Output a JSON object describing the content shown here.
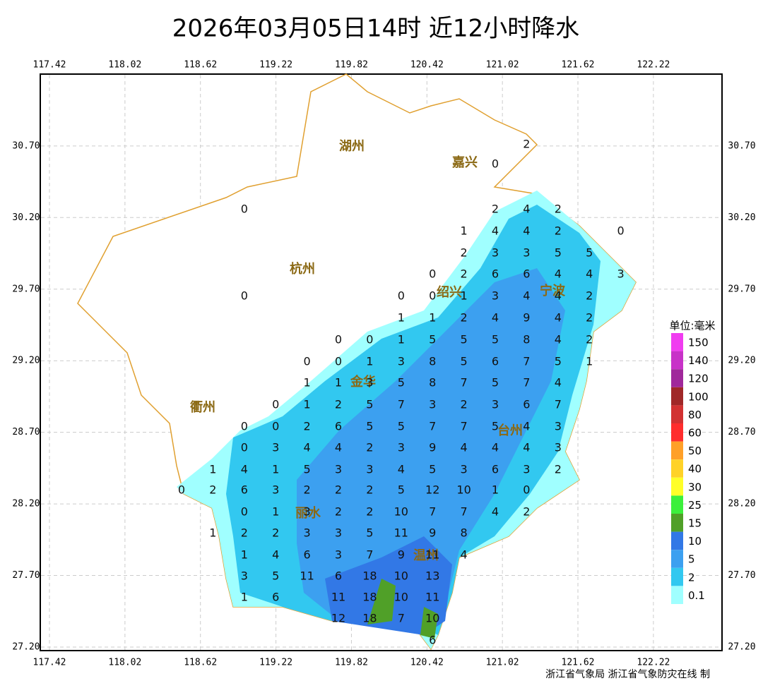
{
  "header": {
    "title": "2026年03月05日14时  近12小时降水"
  },
  "map": {
    "lon_ticks": [
      117.42,
      118.02,
      118.62,
      119.22,
      119.82,
      120.42,
      121.02,
      121.62,
      122.22
    ],
    "lat_ticks": [
      {
        "value": 30.7,
        "label": "30.70"
      },
      {
        "value": 30.2,
        "label": "30.20"
      },
      {
        "value": 29.7,
        "label": "29.70"
      },
      {
        "value": 29.2,
        "label": "29.20"
      },
      {
        "value": 28.7,
        "label": "28.70"
      },
      {
        "value": 28.2,
        "label": "28.20"
      },
      {
        "value": 27.7,
        "label": "27.70"
      },
      {
        "value": 27.2,
        "label": "27.20"
      }
    ],
    "grid": true,
    "cities": [
      "湖州",
      "嘉兴",
      "杭州",
      "绍兴",
      "宁波",
      "衢州",
      "金华",
      "台州",
      "丽水",
      "温州"
    ],
    "stations": [
      [
        null,
        null,
        null,
        null,
        null,
        null,
        null,
        null,
        null,
        null,
        null,
        2,
        null,
        null,
        null
      ],
      [
        null,
        null,
        null,
        null,
        null,
        null,
        null,
        null,
        null,
        null,
        0,
        null,
        null,
        null,
        null
      ],
      [
        null,
        null,
        0,
        null,
        null,
        null,
        null,
        null,
        null,
        null,
        2,
        4,
        2,
        null,
        null
      ],
      [
        null,
        null,
        null,
        null,
        null,
        null,
        null,
        null,
        null,
        1,
        4,
        4,
        2,
        null,
        0
      ],
      [
        null,
        null,
        null,
        null,
        null,
        null,
        null,
        null,
        null,
        2,
        3,
        3,
        5,
        5,
        null
      ],
      [
        null,
        null,
        null,
        null,
        null,
        null,
        null,
        null,
        0,
        2,
        6,
        6,
        4,
        4,
        3
      ],
      [
        null,
        null,
        0,
        null,
        null,
        null,
        null,
        0,
        0,
        1,
        3,
        4,
        4,
        2,
        null
      ],
      [
        null,
        null,
        null,
        null,
        null,
        null,
        null,
        1,
        1,
        2,
        4,
        9,
        4,
        2,
        null
      ],
      [
        null,
        null,
        null,
        null,
        null,
        0,
        0,
        1,
        5,
        5,
        5,
        8,
        4,
        2,
        null
      ],
      [
        null,
        null,
        null,
        null,
        0,
        0,
        1,
        3,
        8,
        5,
        6,
        7,
        5,
        1,
        null
      ],
      [
        null,
        null,
        null,
        null,
        1,
        1,
        3,
        5,
        8,
        7,
        5,
        7,
        4,
        null,
        null
      ],
      [
        null,
        null,
        null,
        0,
        1,
        2,
        5,
        7,
        3,
        2,
        3,
        6,
        7,
        null,
        null
      ],
      [
        null,
        null,
        0,
        0,
        2,
        6,
        5,
        5,
        7,
        7,
        5,
        4,
        3,
        null,
        null
      ],
      [
        null,
        null,
        0,
        3,
        4,
        4,
        2,
        3,
        9,
        4,
        4,
        4,
        3,
        null,
        null
      ],
      [
        null,
        1,
        4,
        1,
        5,
        3,
        3,
        4,
        5,
        3,
        6,
        3,
        2,
        null,
        null
      ],
      [
        0,
        2,
        6,
        3,
        2,
        2,
        2,
        5,
        12,
        10,
        1,
        0,
        null,
        null,
        null
      ],
      [
        null,
        null,
        0,
        1,
        3,
        2,
        2,
        10,
        7,
        7,
        4,
        2,
        null,
        null,
        null
      ],
      [
        null,
        1,
        2,
        2,
        3,
        3,
        5,
        11,
        9,
        8,
        null,
        null,
        null,
        null,
        null
      ],
      [
        null,
        null,
        1,
        4,
        6,
        3,
        7,
        9,
        11,
        4,
        null,
        null,
        null,
        null,
        null
      ],
      [
        null,
        null,
        3,
        5,
        11,
        6,
        18,
        10,
        13,
        null,
        null,
        null,
        null,
        null,
        null
      ],
      [
        null,
        null,
        1,
        6,
        null,
        11,
        18,
        10,
        11,
        null,
        null,
        null,
        null,
        null,
        null
      ],
      [
        null,
        null,
        null,
        null,
        null,
        12,
        18,
        7,
        10,
        null,
        null,
        null,
        null,
        null,
        null
      ],
      [
        null,
        null,
        null,
        null,
        null,
        null,
        null,
        null,
        6,
        null,
        null,
        null,
        null,
        null,
        null
      ]
    ]
  },
  "legend": {
    "unit": "单位:毫米",
    "levels": [
      {
        "value": 150,
        "color": "#f03cf0"
      },
      {
        "value": 140,
        "color": "#c832c8"
      },
      {
        "value": 120,
        "color": "#a0289b"
      },
      {
        "value": 100,
        "color": "#a02828"
      },
      {
        "value": 80,
        "color": "#d23232"
      },
      {
        "value": 60,
        "color": "#ff2d2d"
      },
      {
        "value": 50,
        "color": "#ffa028"
      },
      {
        "value": 40,
        "color": "#ffd228"
      },
      {
        "value": 30,
        "color": "#ffff28"
      },
      {
        "value": 25,
        "color": "#3cf03c"
      },
      {
        "value": 15,
        "color": "#50a028"
      },
      {
        "value": 10,
        "color": "#3278e6"
      },
      {
        "value": 5,
        "color": "#3ca0f0"
      },
      {
        "value": 2,
        "color": "#32c8f0"
      },
      {
        "value": 0.1,
        "color": "#a0ffff"
      }
    ]
  },
  "footer": {
    "credit": "浙江省气象局 浙江省气象防灾在线 制"
  }
}
